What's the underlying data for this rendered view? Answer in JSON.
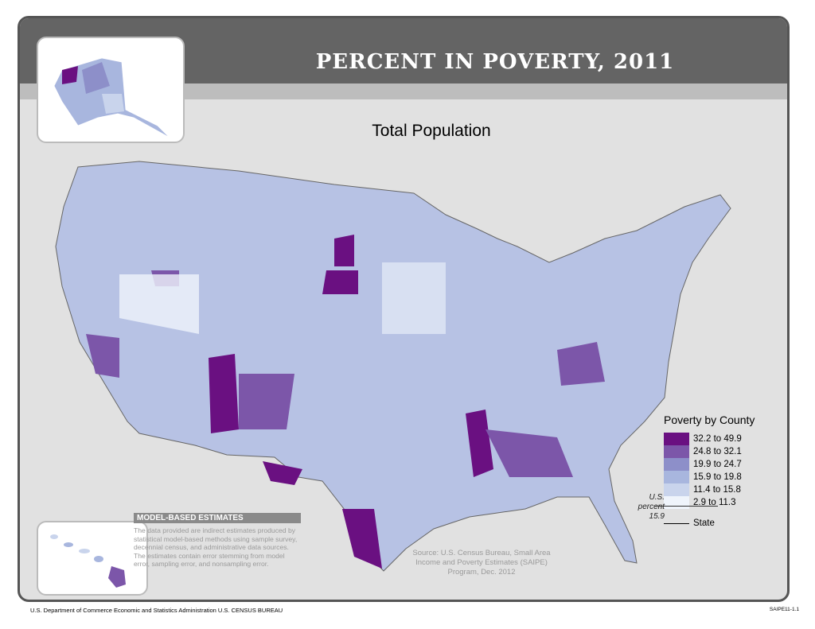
{
  "header": {
    "title": "PERCENT IN POVERTY, 2011",
    "subtitle": "Total Population"
  },
  "legend": {
    "title": "Poverty by County",
    "classes": [
      {
        "label": "32.2 to 49.9",
        "color": "#6a1081"
      },
      {
        "label": "24.8 to 32.1",
        "color": "#7c56a9"
      },
      {
        "label": "19.9 to 24.7",
        "color": "#8d8fc9"
      },
      {
        "label": "15.9 to 19.8",
        "color": "#a8b6de"
      },
      {
        "label": "11.4 to 15.8",
        "color": "#c9d4ec"
      },
      {
        "label": "2.9 to 11.3",
        "color": "#eff4fb"
      }
    ],
    "state_label": "State",
    "us_percent_label": "U.S. percent",
    "us_percent_value": "15.9"
  },
  "note": {
    "heading": "MODEL-BASED ESTIMATES",
    "body": "The data provided are indirect estimates produced by statistical model-based methods using sample survey, decennial census, and administrative data sources. The estimates contain error stemming from model error, sampling error, and nonsampling error."
  },
  "source": "Source: U.S. Census Bureau, Small Area Income and Poverty Estimates (SAIPE) Program, Dec. 2012",
  "footer": {
    "agency": "U.S. Department of Commerce  Economic and Statistics Administration  U.S. CENSUS BUREAU",
    "code": "SAIPE11-1.1"
  }
}
